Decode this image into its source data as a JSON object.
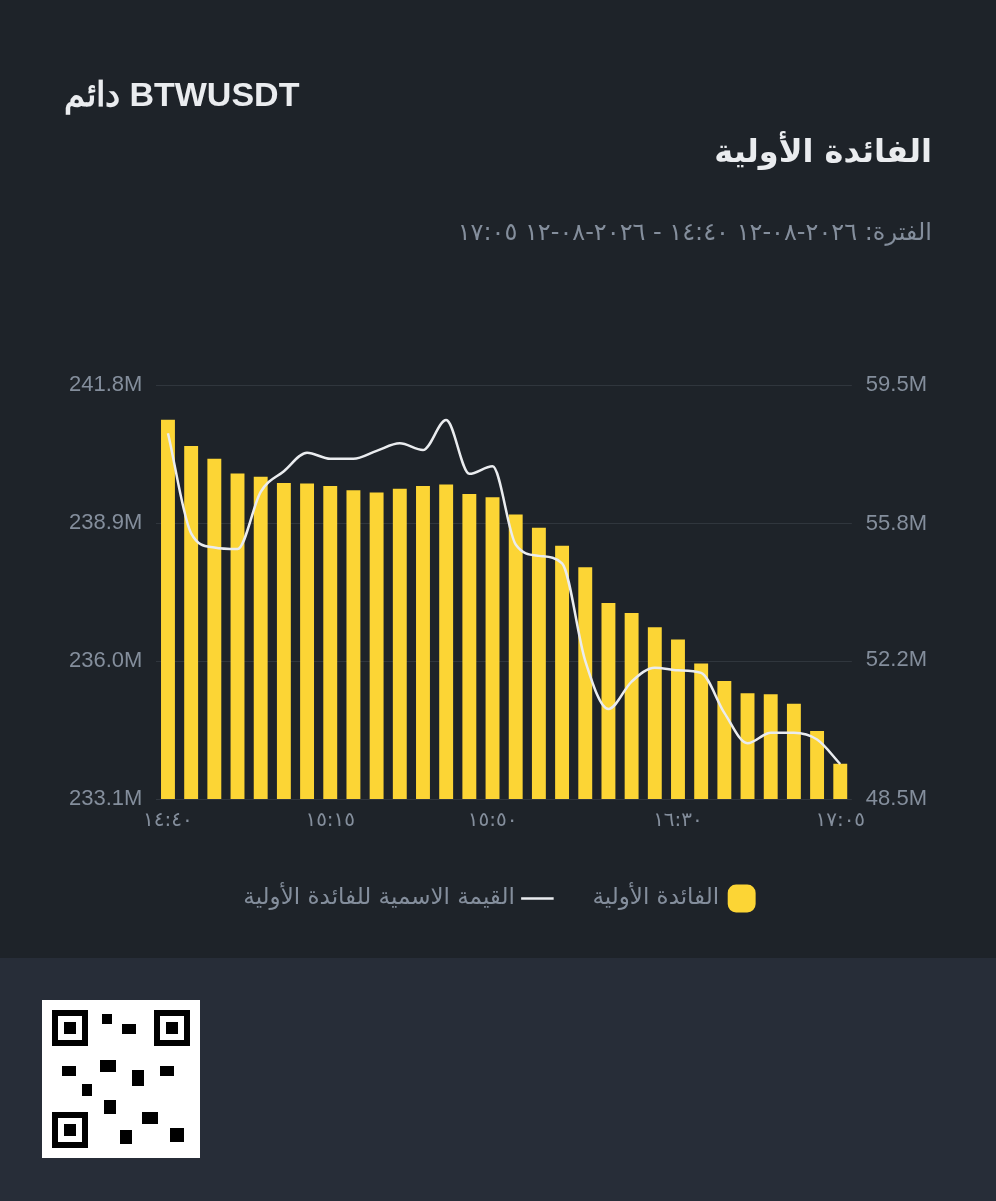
{
  "chart_data": {
    "type": "bar",
    "title": "دائم BTWUSDT",
    "subtitle": "الفائدة الأولية",
    "annotations": [
      "الفترة: ٢٠٢٦-٠٨-١٢ ١٤:٤٠ - ٢٠٢٦-٠٨-١٢ ١٧:٠٥"
    ],
    "categories": [
      "١٤:٤٠",
      null,
      null,
      null,
      null,
      null,
      null,
      "١٥:١٥",
      null,
      null,
      null,
      null,
      null,
      null,
      "١٥:٥٠",
      null,
      null,
      null,
      null,
      null,
      null,
      null,
      "١٦:٣٠",
      null,
      null,
      null,
      null,
      null,
      null,
      "١٧:٠٥"
    ],
    "series": [
      {
        "name": "الفائدة الأولية",
        "color": "#fcd535",
        "values": [
          241.07,
          240.52,
          240.25,
          239.94,
          239.87,
          239.74,
          239.73,
          239.68,
          239.59,
          239.54,
          239.62,
          239.68,
          239.71,
          239.51,
          239.44,
          239.08,
          238.8,
          238.42,
          237.97,
          237.22,
          237.01,
          236.71,
          236.45,
          235.95,
          235.58,
          235.32,
          235.3,
          235.1,
          234.53,
          233.84
        ]
      },
      {
        "name": "القيمة الاسمية للفائدة الأولية",
        "type": "line",
        "axis": "y2",
        "color": "#eaecef",
        "marker": "none",
        "line_style": "solid",
        "values": [
          58.22,
          55.56,
          55.18,
          55.14,
          56.66,
          57.21,
          57.7,
          57.54,
          57.54,
          57.75,
          57.95,
          57.77,
          58.57,
          57.14,
          57.34,
          55.26,
          54.96,
          54.76,
          52.17,
          50.89,
          51.62,
          51.99,
          51.92,
          51.85,
          50.79,
          49.98,
          50.26,
          50.26,
          50.08,
          49.43
        ]
      }
    ],
    "ylim": [
      233.1,
      241.8
    ],
    "yticks": [
      {
        "value": 233.1,
        "label": "233.1M"
      },
      {
        "value": 236.0,
        "label": "236.0M"
      },
      {
        "value": 238.9,
        "label": "238.9M"
      },
      {
        "value": 241.8,
        "label": "241.8M"
      }
    ],
    "y2lim": [
      48.5,
      59.5
    ],
    "y2ticks": [
      {
        "value": 48.5,
        "label": "48.5M"
      },
      {
        "value": 52.2,
        "label": "52.2M"
      },
      {
        "value": 55.8,
        "label": "55.8M"
      },
      {
        "value": 59.5,
        "label": "59.5M"
      }
    ],
    "grid": "y",
    "legend": "bottom"
  }
}
